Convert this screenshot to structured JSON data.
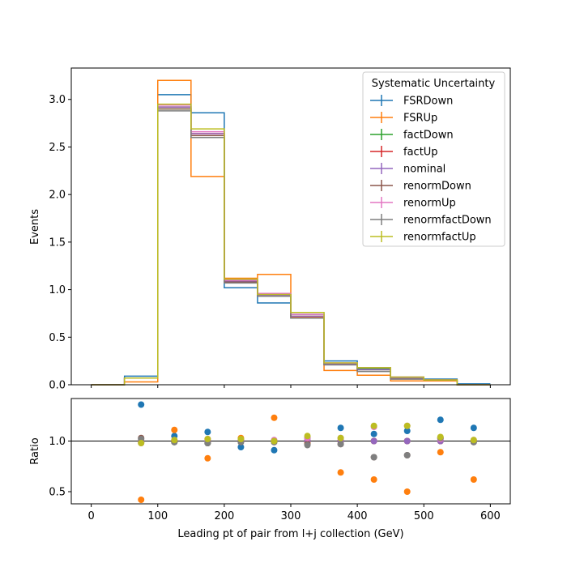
{
  "chart_data": [
    {
      "type": "line",
      "drawstyle": "steps",
      "title": "",
      "xlabel": "",
      "ylabel": "Events",
      "xlim": [
        -30,
        630
      ],
      "ylim": [
        0,
        3.33
      ],
      "x_ticks": [
        0,
        100,
        200,
        300,
        400,
        500,
        600
      ],
      "x_tick_labels_shown": false,
      "y_ticks": [
        0.0,
        0.5,
        1.0,
        1.5,
        2.0,
        2.5,
        3.0
      ],
      "y_tick_labels": [
        "0.0",
        "0.5",
        "1.0",
        "1.5",
        "2.0",
        "2.5",
        "3.0"
      ],
      "bin_edges": [
        0,
        50,
        100,
        150,
        200,
        250,
        300,
        350,
        400,
        450,
        500,
        550,
        600
      ],
      "legend": {
        "title": "Systematic Uncertainty",
        "position": "top-right"
      },
      "series": [
        {
          "name": "FSRDown",
          "color": "#1f77b4",
          "values": [
            0.0,
            0.09,
            3.05,
            2.86,
            1.02,
            0.86,
            0.74,
            0.25,
            0.18,
            0.07,
            0.06,
            0.01
          ]
        },
        {
          "name": "FSRUp",
          "color": "#ff7f0e",
          "values": [
            0.0,
            0.03,
            3.2,
            2.19,
            1.12,
            1.16,
            0.71,
            0.15,
            0.1,
            0.04,
            0.04,
            0.0
          ]
        },
        {
          "name": "factDown",
          "color": "#2ca02c",
          "values": [
            0.0,
            0.07,
            2.9,
            2.6,
            1.1,
            0.95,
            0.72,
            0.22,
            0.17,
            0.08,
            0.05,
            0.0
          ]
        },
        {
          "name": "factUp",
          "color": "#d62728",
          "values": [
            0.0,
            0.07,
            2.92,
            2.64,
            1.1,
            0.95,
            0.72,
            0.22,
            0.16,
            0.08,
            0.05,
            0.0
          ]
        },
        {
          "name": "nominal",
          "color": "#9467bd",
          "values": [
            0.0,
            0.07,
            2.92,
            2.64,
            1.09,
            0.94,
            0.72,
            0.22,
            0.16,
            0.07,
            0.05,
            0.0
          ]
        },
        {
          "name": "renormDown",
          "color": "#8c564b",
          "values": [
            0.0,
            0.07,
            2.9,
            2.62,
            1.08,
            0.93,
            0.7,
            0.21,
            0.14,
            0.06,
            0.05,
            0.0
          ]
        },
        {
          "name": "renormUp",
          "color": "#e377c2",
          "values": [
            0.0,
            0.07,
            2.94,
            2.66,
            1.1,
            0.96,
            0.74,
            0.23,
            0.18,
            0.08,
            0.05,
            0.0
          ]
        },
        {
          "name": "renormfactDown",
          "color": "#7f7f7f",
          "values": [
            0.0,
            0.07,
            2.88,
            2.6,
            1.07,
            0.93,
            0.7,
            0.21,
            0.14,
            0.06,
            0.05,
            0.0
          ]
        },
        {
          "name": "renormfactUp",
          "color": "#bcbd22",
          "values": [
            0.0,
            0.07,
            2.95,
            2.69,
            1.11,
            0.95,
            0.76,
            0.23,
            0.18,
            0.08,
            0.05,
            0.0
          ]
        }
      ]
    },
    {
      "type": "scatter",
      "title": "",
      "xlabel": "Leading pt of pair from l+j collection (GeV)",
      "ylabel": "Ratio",
      "xlim": [
        -30,
        630
      ],
      "ylim": [
        0.38,
        1.42
      ],
      "x_ticks": [
        0,
        100,
        200,
        300,
        400,
        500,
        600
      ],
      "x_tick_labels": [
        "0",
        "100",
        "200",
        "300",
        "400",
        "500",
        "600"
      ],
      "y_ticks": [
        0.5,
        1.0
      ],
      "y_tick_labels": [
        "0.5",
        "1.0"
      ],
      "reference_line": 1.0,
      "x": [
        75,
        125,
        175,
        225,
        275,
        325,
        375,
        425,
        475,
        525,
        575
      ],
      "series": [
        {
          "name": "FSRDown",
          "color": "#1f77b4",
          "values": [
            1.36,
            1.05,
            1.09,
            0.94,
            0.91,
            1.03,
            1.13,
            1.07,
            1.1,
            1.21,
            1.13
          ]
        },
        {
          "name": "FSRUp",
          "color": "#ff7f0e",
          "values": [
            0.42,
            1.11,
            0.83,
            1.03,
            1.23,
            0.98,
            0.69,
            0.62,
            0.5,
            0.89,
            0.62
          ]
        },
        {
          "name": "factDown",
          "color": "#2ca02c",
          "values": [
            0.99,
            0.99,
            0.98,
            1.01,
            1.0,
            1.0,
            1.0,
            1.0,
            1.0,
            1.0,
            1.0
          ]
        },
        {
          "name": "factUp",
          "color": "#d62728",
          "values": [
            1.0,
            1.0,
            1.0,
            1.01,
            1.0,
            1.0,
            1.0,
            1.0,
            1.0,
            1.0,
            1.0
          ]
        },
        {
          "name": "nominal",
          "color": "#9467bd",
          "values": [
            1.0,
            1.0,
            1.0,
            1.0,
            1.0,
            1.0,
            1.0,
            1.0,
            1.0,
            1.0,
            1.0
          ]
        },
        {
          "name": "renormDown",
          "color": "#8c564b",
          "values": [
            1.03,
            0.99,
            0.98,
            0.99,
            0.99,
            0.97,
            0.97,
            0.84,
            0.86,
            1.03,
            0.99
          ]
        },
        {
          "name": "renormUp",
          "color": "#e377c2",
          "values": [
            0.98,
            1.01,
            1.02,
            1.01,
            1.01,
            1.03,
            1.03,
            1.14,
            1.15,
            1.02,
            1.01
          ]
        },
        {
          "name": "renormfactDown",
          "color": "#7f7f7f",
          "values": [
            1.02,
            0.99,
            0.98,
            0.99,
            0.99,
            0.96,
            0.97,
            0.84,
            0.86,
            1.03,
            0.99
          ]
        },
        {
          "name": "renormfactUp",
          "color": "#bcbd22",
          "values": [
            0.98,
            1.01,
            1.02,
            1.02,
            1.0,
            1.05,
            1.03,
            1.15,
            1.15,
            1.04,
            1.01
          ]
        }
      ]
    }
  ]
}
